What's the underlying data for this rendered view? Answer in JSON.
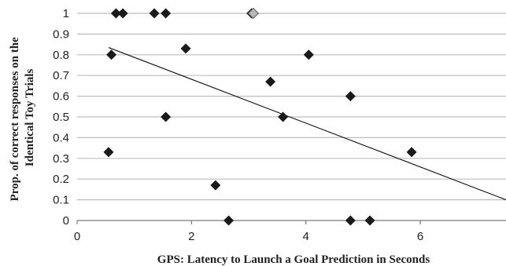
{
  "chart_data": {
    "type": "scatter",
    "title": "",
    "xlabel": "GPS: Latency to Launch a Goal Prediction in Seconds",
    "ylabel_lines": [
      "Prop. of correct responses on the",
      "Identical Toy Trials"
    ],
    "xlim": [
      0,
      7.5
    ],
    "ylim": [
      0,
      1
    ],
    "x_ticks": [
      0,
      2,
      4,
      6
    ],
    "y_ticks": [
      0,
      0.1,
      0.2,
      0.3,
      0.4,
      0.5,
      0.6,
      0.7,
      0.8,
      0.9,
      1
    ],
    "y_tick_labels": [
      "0",
      "0.1",
      "0.2",
      "0.3",
      "0.4",
      "0.5",
      "0.6",
      "0.7",
      "0.8",
      "0.9",
      "1"
    ],
    "x_tick_labels": [
      "0",
      "2",
      "4",
      "6"
    ],
    "grid": "horizontal",
    "marker_color": "#1a1a1a",
    "highlight_color": "#b8b8b8",
    "series": [
      {
        "points": [
          {
            "x": 0.55,
            "y": 0.33
          },
          {
            "x": 0.6,
            "y": 0.8
          },
          {
            "x": 0.68,
            "y": 1
          },
          {
            "x": 0.8,
            "y": 1
          },
          {
            "x": 1.35,
            "y": 1
          },
          {
            "x": 1.55,
            "y": 1
          },
          {
            "x": 1.55,
            "y": 0.5
          },
          {
            "x": 1.9,
            "y": 0.83
          },
          {
            "x": 2.42,
            "y": 0.17
          },
          {
            "x": 2.65,
            "y": 0
          },
          {
            "x": 3.05,
            "y": 1
          },
          {
            "x": 3.38,
            "y": 0.67
          },
          {
            "x": 3.6,
            "y": 0.5
          },
          {
            "x": 4.05,
            "y": 0.8
          },
          {
            "x": 4.78,
            "y": 0.6
          },
          {
            "x": 4.78,
            "y": 0
          },
          {
            "x": 5.12,
            "y": 0
          },
          {
            "x": 5.85,
            "y": 0.33
          }
        ],
        "highlighted": [
          {
            "x": 3.08,
            "y": 1
          }
        ]
      }
    ],
    "trendline": {
      "x": [
        0.55,
        7.5
      ],
      "y": [
        0.835,
        0.1
      ]
    }
  }
}
